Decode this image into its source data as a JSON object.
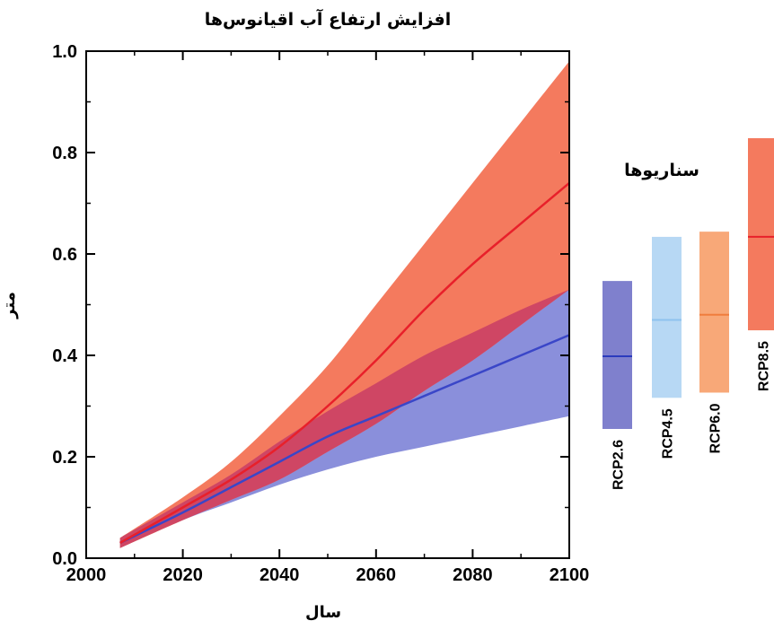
{
  "chart_data": {
    "type": "area",
    "title": "افزایش ارتفاع آب اقیانوس‌ها",
    "xlabel": "سال",
    "ylabel": "متر",
    "xlim": [
      2000,
      2100
    ],
    "ylim": [
      0.0,
      1.0
    ],
    "xticks": [
      "2000",
      "2020",
      "2040",
      "2060",
      "2080",
      "2100"
    ],
    "yticks": [
      "0.0",
      "0.2",
      "0.4",
      "0.6",
      "0.8",
      "1.0"
    ],
    "series": [
      {
        "name": "RCP2.6",
        "color": "#3a46c8",
        "band_color": "#8a8fdb",
        "x": [
          2007,
          2020,
          2030,
          2040,
          2050,
          2060,
          2070,
          2080,
          2090,
          2100
        ],
        "mean": [
          0.03,
          0.09,
          0.14,
          0.19,
          0.24,
          0.28,
          0.32,
          0.36,
          0.4,
          0.44
        ],
        "lower": [
          0.02,
          0.075,
          0.11,
          0.145,
          0.175,
          0.2,
          0.22,
          0.24,
          0.26,
          0.28
        ],
        "upper": [
          0.04,
          0.11,
          0.165,
          0.23,
          0.29,
          0.345,
          0.4,
          0.445,
          0.49,
          0.53
        ]
      },
      {
        "name": "RCP8.5",
        "color": "#e8202a",
        "band_color": "#f47a5e",
        "x": [
          2007,
          2020,
          2030,
          2040,
          2050,
          2060,
          2070,
          2080,
          2090,
          2100
        ],
        "mean": [
          0.03,
          0.1,
          0.155,
          0.22,
          0.3,
          0.39,
          0.49,
          0.58,
          0.66,
          0.74
        ],
        "lower": [
          0.02,
          0.075,
          0.115,
          0.155,
          0.21,
          0.265,
          0.33,
          0.39,
          0.46,
          0.53
        ],
        "upper": [
          0.04,
          0.12,
          0.19,
          0.28,
          0.38,
          0.5,
          0.62,
          0.74,
          0.86,
          0.98
        ]
      }
    ],
    "legend_title": "سناریوها",
    "scenarios": [
      {
        "name": "RCP2.6",
        "low": 0.26,
        "mean": 0.4,
        "high": 0.545,
        "fill": "#7f80cd",
        "line": "#2b3bbd"
      },
      {
        "name": "RCP4.5",
        "low": 0.32,
        "mean": 0.47,
        "high": 0.63,
        "fill": "#b7d8f4",
        "line": "#8ec2ee"
      },
      {
        "name": "RCP6.0",
        "low": 0.33,
        "mean": 0.48,
        "high": 0.64,
        "fill": "#f8a878",
        "line": "#f07d3d"
      },
      {
        "name": "RCP8.5",
        "low": 0.45,
        "mean": 0.63,
        "high": 0.82,
        "fill": "#f47a5e",
        "line": "#e8202a"
      }
    ],
    "overlap_color": "#cf4664",
    "grid": false
  }
}
